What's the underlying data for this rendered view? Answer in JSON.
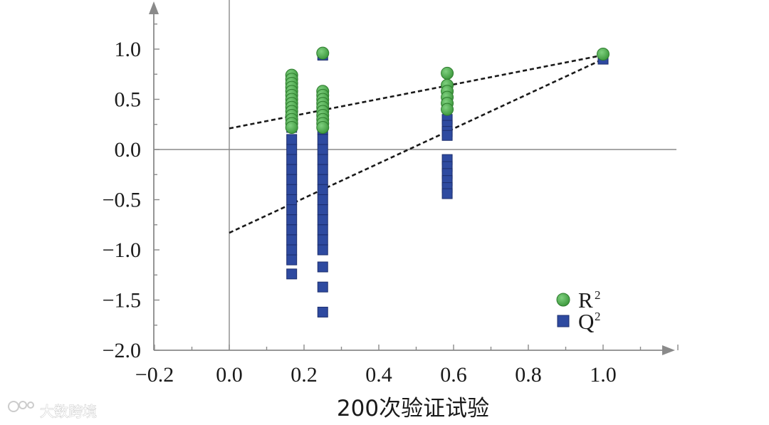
{
  "chart_data": {
    "type": "scatter",
    "xlabel": "200次验证试验",
    "ylabel": "",
    "xlim": [
      -0.2,
      1.2
    ],
    "ylim": [
      -2.0,
      1.4
    ],
    "x_ticks": [
      -0.2,
      0.0,
      0.2,
      0.4,
      0.6,
      0.8,
      1.0
    ],
    "x_tick_labels": [
      "−0.2",
      "0.0",
      "0.2",
      "0.4",
      "0.6",
      "0.8",
      "1.0"
    ],
    "y_ticks": [
      -2.0,
      -1.5,
      -1.0,
      -0.5,
      0.0,
      0.5,
      1.0
    ],
    "y_tick_labels": [
      "−2.0",
      "−1.5",
      "−1.0",
      "−0.5",
      "0.0",
      "0.5",
      "1.0"
    ],
    "grid": false,
    "legend_position": "bottom-right",
    "series": [
      {
        "name": "R",
        "superscript": "2",
        "marker": "circle",
        "color": "#4caf50",
        "points": [
          {
            "x": 0.167,
            "y": 0.74
          },
          {
            "x": 0.167,
            "y": 0.7
          },
          {
            "x": 0.167,
            "y": 0.66
          },
          {
            "x": 0.167,
            "y": 0.62
          },
          {
            "x": 0.167,
            "y": 0.58
          },
          {
            "x": 0.167,
            "y": 0.54
          },
          {
            "x": 0.167,
            "y": 0.5
          },
          {
            "x": 0.167,
            "y": 0.46
          },
          {
            "x": 0.167,
            "y": 0.42
          },
          {
            "x": 0.167,
            "y": 0.38
          },
          {
            "x": 0.167,
            "y": 0.34
          },
          {
            "x": 0.167,
            "y": 0.3
          },
          {
            "x": 0.167,
            "y": 0.26
          },
          {
            "x": 0.167,
            "y": 0.22
          },
          {
            "x": 0.25,
            "y": 0.96
          },
          {
            "x": 0.25,
            "y": 0.58
          },
          {
            "x": 0.25,
            "y": 0.54
          },
          {
            "x": 0.25,
            "y": 0.5
          },
          {
            "x": 0.25,
            "y": 0.46
          },
          {
            "x": 0.25,
            "y": 0.42
          },
          {
            "x": 0.25,
            "y": 0.38
          },
          {
            "x": 0.25,
            "y": 0.34
          },
          {
            "x": 0.25,
            "y": 0.3
          },
          {
            "x": 0.25,
            "y": 0.26
          },
          {
            "x": 0.25,
            "y": 0.22
          },
          {
            "x": 0.583,
            "y": 0.76
          },
          {
            "x": 0.583,
            "y": 0.64
          },
          {
            "x": 0.583,
            "y": 0.58
          },
          {
            "x": 0.583,
            "y": 0.52
          },
          {
            "x": 0.583,
            "y": 0.46
          },
          {
            "x": 0.583,
            "y": 0.4
          },
          {
            "x": 1.0,
            "y": 0.95
          }
        ]
      },
      {
        "name": "Q",
        "superscript": "2",
        "marker": "square",
        "color": "#2e4aa0",
        "points": [
          {
            "x": 0.167,
            "y": 0.22
          },
          {
            "x": 0.167,
            "y": 0.1
          },
          {
            "x": 0.167,
            "y": 0.0
          },
          {
            "x": 0.167,
            "y": -0.1
          },
          {
            "x": 0.167,
            "y": -0.2
          },
          {
            "x": 0.167,
            "y": -0.3
          },
          {
            "x": 0.167,
            "y": -0.4
          },
          {
            "x": 0.167,
            "y": -0.5
          },
          {
            "x": 0.167,
            "y": -0.6
          },
          {
            "x": 0.167,
            "y": -0.7
          },
          {
            "x": 0.167,
            "y": -0.8
          },
          {
            "x": 0.167,
            "y": -0.9
          },
          {
            "x": 0.167,
            "y": -1.0
          },
          {
            "x": 0.167,
            "y": -1.1
          },
          {
            "x": 0.167,
            "y": -1.24
          },
          {
            "x": 0.25,
            "y": 0.94
          },
          {
            "x": 0.25,
            "y": 0.2
          },
          {
            "x": 0.25,
            "y": 0.1
          },
          {
            "x": 0.25,
            "y": 0.0
          },
          {
            "x": 0.25,
            "y": -0.1
          },
          {
            "x": 0.25,
            "y": -0.2
          },
          {
            "x": 0.25,
            "y": -0.3
          },
          {
            "x": 0.25,
            "y": -0.4
          },
          {
            "x": 0.25,
            "y": -0.5
          },
          {
            "x": 0.25,
            "y": -0.6
          },
          {
            "x": 0.25,
            "y": -0.7
          },
          {
            "x": 0.25,
            "y": -0.8
          },
          {
            "x": 0.25,
            "y": -0.9
          },
          {
            "x": 0.25,
            "y": -1.0
          },
          {
            "x": 0.25,
            "y": -1.17
          },
          {
            "x": 0.25,
            "y": -1.37
          },
          {
            "x": 0.25,
            "y": -1.62
          },
          {
            "x": 0.583,
            "y": 0.3
          },
          {
            "x": 0.583,
            "y": 0.24
          },
          {
            "x": 0.583,
            "y": 0.18
          },
          {
            "x": 0.583,
            "y": 0.14
          },
          {
            "x": 0.583,
            "y": -0.1
          },
          {
            "x": 0.583,
            "y": -0.17
          },
          {
            "x": 0.583,
            "y": -0.24
          },
          {
            "x": 0.583,
            "y": -0.31
          },
          {
            "x": 0.583,
            "y": -0.38
          },
          {
            "x": 0.583,
            "y": -0.44
          },
          {
            "x": 1.0,
            "y": 0.9
          }
        ]
      }
    ],
    "regression_lines": [
      {
        "series": "R",
        "style": "dashed",
        "color": "#1a1a1a",
        "x": [
          0.0,
          1.0
        ],
        "y": [
          0.21,
          0.94
        ]
      },
      {
        "series": "Q",
        "style": "dashed",
        "color": "#1a1a1a",
        "x": [
          0.0,
          1.0
        ],
        "y": [
          -0.83,
          0.9
        ]
      }
    ]
  },
  "watermark": {
    "text": "大数跨境"
  }
}
